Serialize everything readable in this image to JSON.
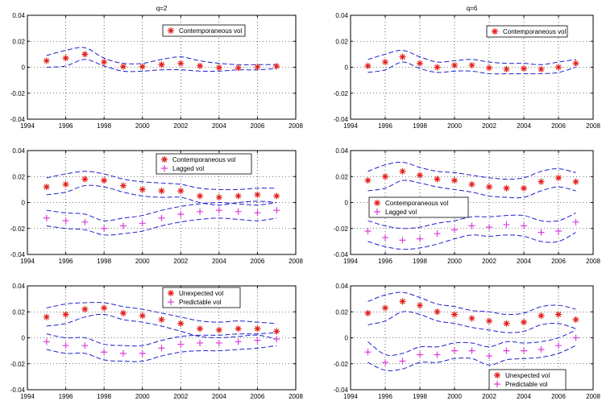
{
  "colors": {
    "axis": "#000000",
    "band": "#1f1fd0",
    "star": "#e0201c",
    "plus": "#d93fd9"
  },
  "chart_data": [
    {
      "type": "scatter",
      "title": "q=2",
      "xlim": [
        1994,
        2008
      ],
      "ylim": [
        -0.04,
        0.04
      ],
      "xticks": [
        "1994",
        "1996",
        "1998",
        "2000",
        "2002",
        "2004",
        "2006",
        "2008"
      ],
      "yticks": [
        "-0.04",
        "-0.02",
        "0",
        "0.02",
        "0.04"
      ],
      "grid": true,
      "legend_position": "top-right",
      "x": [
        1995,
        1996,
        1997,
        1998,
        1999,
        2000,
        2001,
        2002,
        2003,
        2004,
        2005,
        2006,
        2007
      ],
      "series": [
        {
          "name": "Contemporaneous vol",
          "marker": "star",
          "values": [
            0.005,
            0.007,
            0.01,
            0.004,
            0.0005,
            0.0005,
            0.002,
            0.003,
            0.001,
            -0.0003,
            -0.0005,
            0.0002,
            0.0008
          ],
          "upper": [
            0.009,
            0.013,
            0.015,
            0.007,
            0.003,
            0.003,
            0.006,
            0.008,
            0.005,
            0.003,
            0.002,
            0.002,
            0.002
          ],
          "lower": [
            0.0,
            0.001,
            0.006,
            0.001,
            -0.003,
            -0.003,
            -0.002,
            -0.002,
            -0.003,
            -0.003,
            -0.002,
            -0.002,
            -0.001
          ]
        }
      ]
    },
    {
      "type": "scatter",
      "title": "q=6",
      "xlim": [
        1994,
        2008
      ],
      "ylim": [
        -0.04,
        0.04
      ],
      "xticks": [
        "1994",
        "1996",
        "1998",
        "2000",
        "2002",
        "2004",
        "2006",
        "2008"
      ],
      "yticks": [
        "-0.04",
        "-0.02",
        "0",
        "0.02",
        "0.04"
      ],
      "grid": true,
      "legend_position": "top-right",
      "x": [
        1995,
        1996,
        1997,
        1998,
        1999,
        2000,
        2001,
        2002,
        2003,
        2004,
        2005,
        2006,
        2007
      ],
      "series": [
        {
          "name": "Contemporaneous vol",
          "marker": "star",
          "values": [
            0.001,
            0.004,
            0.008,
            0.003,
            0.0,
            0.0015,
            0.0015,
            -0.0005,
            -0.0015,
            -0.001,
            -0.0015,
            0.0,
            0.003
          ],
          "upper": [
            0.006,
            0.01,
            0.013,
            0.008,
            0.004,
            0.005,
            0.006,
            0.004,
            0.003,
            0.003,
            0.002,
            0.004,
            0.006
          ],
          "lower": [
            -0.004,
            -0.002,
            0.004,
            -0.001,
            -0.004,
            -0.003,
            -0.003,
            -0.005,
            -0.005,
            -0.005,
            -0.005,
            -0.004,
            0.0
          ]
        }
      ]
    },
    {
      "type": "scatter",
      "title": "",
      "xlim": [
        1994,
        2008
      ],
      "ylim": [
        -0.04,
        0.04
      ],
      "xticks": [
        "1994",
        "1996",
        "1998",
        "2000",
        "2002",
        "2004",
        "2006",
        "2008"
      ],
      "yticks": [
        "-0.04",
        "-0.02",
        "0",
        "0.02",
        "0.04"
      ],
      "grid": true,
      "legend_position": "top-right",
      "x": [
        1995,
        1996,
        1997,
        1998,
        1999,
        2000,
        2001,
        2002,
        2003,
        2004,
        2005,
        2006,
        2007
      ],
      "series": [
        {
          "name": "Contemporaneous vol",
          "marker": "star",
          "values": [
            0.012,
            0.014,
            0.018,
            0.017,
            0.013,
            0.01,
            0.009,
            0.009,
            0.005,
            0.004,
            0.005,
            0.006,
            0.005
          ],
          "upper": [
            0.019,
            0.022,
            0.024,
            0.022,
            0.018,
            0.016,
            0.015,
            0.014,
            0.011,
            0.01,
            0.01,
            0.011,
            0.011
          ],
          "lower": [
            0.006,
            0.008,
            0.013,
            0.012,
            0.008,
            0.005,
            0.004,
            0.004,
            0.0,
            -0.002,
            0.0,
            0.001,
            0.0
          ]
        },
        {
          "name": "Lagged vol",
          "marker": "plus",
          "values": [
            -0.012,
            -0.014,
            -0.015,
            -0.02,
            -0.018,
            -0.016,
            -0.012,
            -0.009,
            -0.007,
            -0.006,
            -0.007,
            -0.008,
            -0.006
          ],
          "upper": [
            -0.006,
            -0.008,
            -0.009,
            -0.014,
            -0.012,
            -0.01,
            -0.006,
            -0.003,
            -0.001,
            0.0,
            -0.001,
            -0.002,
            0.0
          ],
          "lower": [
            -0.018,
            -0.02,
            -0.021,
            -0.025,
            -0.024,
            -0.022,
            -0.018,
            -0.015,
            -0.013,
            -0.012,
            -0.013,
            -0.014,
            -0.012
          ]
        }
      ]
    },
    {
      "type": "scatter",
      "title": "",
      "xlim": [
        1994,
        2008
      ],
      "ylim": [
        -0.04,
        0.04
      ],
      "xticks": [
        "1994",
        "1996",
        "1998",
        "2000",
        "2002",
        "2004",
        "2006",
        "2008"
      ],
      "yticks": [
        "-0.04",
        "-0.02",
        "0",
        "0.02",
        "0.04"
      ],
      "grid": true,
      "legend_position": "middle-left",
      "x": [
        1995,
        1996,
        1997,
        1998,
        1999,
        2000,
        2001,
        2002,
        2003,
        2004,
        2005,
        2006,
        2007
      ],
      "series": [
        {
          "name": "Contemporaneous vol",
          "marker": "star",
          "values": [
            0.017,
            0.02,
            0.024,
            0.021,
            0.018,
            0.017,
            0.014,
            0.012,
            0.011,
            0.011,
            0.016,
            0.019,
            0.016
          ],
          "upper": [
            0.024,
            0.029,
            0.031,
            0.027,
            0.024,
            0.023,
            0.021,
            0.019,
            0.018,
            0.019,
            0.024,
            0.026,
            0.023
          ],
          "lower": [
            0.009,
            0.011,
            0.017,
            0.015,
            0.012,
            0.01,
            0.008,
            0.005,
            0.004,
            0.004,
            0.009,
            0.012,
            0.009
          ]
        },
        {
          "name": "Lagged vol",
          "marker": "plus",
          "values": [
            -0.022,
            -0.027,
            -0.029,
            -0.028,
            -0.024,
            -0.021,
            -0.018,
            -0.019,
            -0.017,
            -0.018,
            -0.023,
            -0.022,
            -0.015
          ],
          "upper": [
            -0.014,
            -0.018,
            -0.02,
            -0.019,
            -0.016,
            -0.014,
            -0.011,
            -0.011,
            -0.01,
            -0.01,
            -0.014,
            -0.014,
            -0.008
          ],
          "lower": [
            -0.03,
            -0.034,
            -0.036,
            -0.035,
            -0.032,
            -0.028,
            -0.025,
            -0.026,
            -0.025,
            -0.026,
            -0.03,
            -0.03,
            -0.023
          ]
        }
      ]
    },
    {
      "type": "scatter",
      "title": "",
      "xlim": [
        1994,
        2008
      ],
      "ylim": [
        -0.04,
        0.04
      ],
      "xticks": [
        "1994",
        "1996",
        "1998",
        "2000",
        "2002",
        "2004",
        "2006",
        "2008"
      ],
      "yticks": [
        "-0.04",
        "-0.02",
        "0",
        "0.02",
        "0.04"
      ],
      "grid": true,
      "legend_position": "top-right",
      "x": [
        1995,
        1996,
        1997,
        1998,
        1999,
        2000,
        2001,
        2002,
        2003,
        2004,
        2005,
        2006,
        2007
      ],
      "series": [
        {
          "name": "Unexpected vol",
          "marker": "star",
          "values": [
            0.016,
            0.018,
            0.022,
            0.023,
            0.019,
            0.017,
            0.014,
            0.011,
            0.007,
            0.006,
            0.007,
            0.007,
            0.005
          ],
          "upper": [
            0.023,
            0.026,
            0.027,
            0.027,
            0.024,
            0.022,
            0.019,
            0.016,
            0.013,
            0.012,
            0.013,
            0.012,
            0.011
          ],
          "lower": [
            0.009,
            0.011,
            0.016,
            0.018,
            0.014,
            0.012,
            0.009,
            0.005,
            0.001,
            0.0,
            0.001,
            0.002,
            -0.001
          ]
        },
        {
          "name": "Predictable vol",
          "marker": "plus",
          "values": [
            -0.003,
            -0.006,
            -0.006,
            -0.011,
            -0.012,
            -0.012,
            -0.008,
            -0.005,
            -0.004,
            -0.004,
            -0.003,
            -0.002,
            -0.001
          ],
          "upper": [
            0.003,
            0.0,
            0.0,
            -0.005,
            -0.006,
            -0.006,
            -0.002,
            0.001,
            0.002,
            0.002,
            0.003,
            0.003,
            0.004
          ],
          "lower": [
            -0.009,
            -0.012,
            -0.012,
            -0.017,
            -0.018,
            -0.018,
            -0.014,
            -0.011,
            -0.01,
            -0.01,
            -0.009,
            -0.008,
            -0.006
          ]
        }
      ]
    },
    {
      "type": "scatter",
      "title": "",
      "xlim": [
        1994,
        2008
      ],
      "ylim": [
        -0.04,
        0.04
      ],
      "xticks": [
        "1994",
        "1996",
        "1998",
        "2000",
        "2002",
        "2004",
        "2006",
        "2008"
      ],
      "yticks": [
        "-0.04",
        "-0.02",
        "0",
        "0.02",
        "0.04"
      ],
      "grid": true,
      "legend_position": "bottom-right",
      "x": [
        1995,
        1996,
        1997,
        1998,
        1999,
        2000,
        2001,
        2002,
        2003,
        2004,
        2005,
        2006,
        2007
      ],
      "series": [
        {
          "name": "Unexpected vol",
          "marker": "star",
          "values": [
            0.019,
            0.023,
            0.028,
            0.025,
            0.02,
            0.018,
            0.015,
            0.013,
            0.011,
            0.012,
            0.017,
            0.018,
            0.014
          ],
          "upper": [
            0.028,
            0.033,
            0.035,
            0.031,
            0.026,
            0.024,
            0.021,
            0.02,
            0.018,
            0.019,
            0.024,
            0.025,
            0.022
          ],
          "lower": [
            0.01,
            0.013,
            0.02,
            0.018,
            0.013,
            0.011,
            0.008,
            0.006,
            0.004,
            0.005,
            0.01,
            0.011,
            0.007
          ]
        },
        {
          "name": "Predictable vol",
          "marker": "plus",
          "values": [
            -0.011,
            -0.019,
            -0.018,
            -0.013,
            -0.013,
            -0.01,
            -0.01,
            -0.014,
            -0.01,
            -0.01,
            -0.009,
            -0.006,
            0.0
          ],
          "upper": [
            -0.003,
            -0.013,
            -0.012,
            -0.007,
            -0.007,
            -0.004,
            -0.004,
            -0.007,
            -0.003,
            -0.004,
            -0.003,
            0.0,
            0.006
          ],
          "lower": [
            -0.019,
            -0.025,
            -0.024,
            -0.019,
            -0.019,
            -0.016,
            -0.016,
            -0.021,
            -0.017,
            -0.016,
            -0.015,
            -0.012,
            -0.006
          ]
        }
      ]
    }
  ]
}
